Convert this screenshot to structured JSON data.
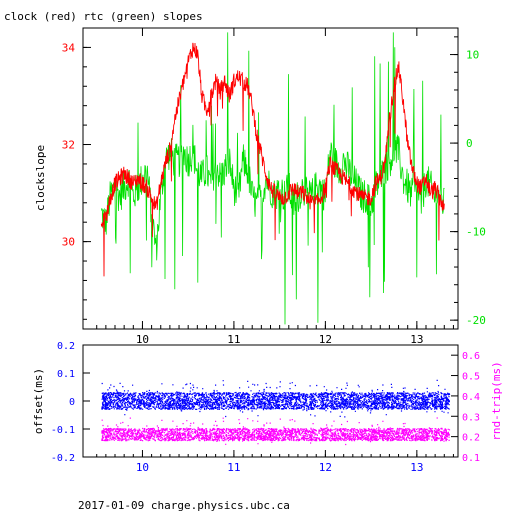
{
  "page": {
    "title": "clock (red) rtc (green) slopes",
    "footer": "2017-01-09 charge.physics.ubc.ca"
  },
  "colors": {
    "clock": "#ff0000",
    "rtc": "#00e000",
    "offset": "#0000ff",
    "rnd_trip": "#ff00ff",
    "axis": "#000000"
  },
  "chart_data": [
    {
      "type": "line",
      "title": "clock (red) rtc (green) slopes",
      "xlabel": "",
      "ylabel": "clockslope",
      "xlim": [
        9.35,
        13.45
      ],
      "ylim": [
        28.2,
        34.4
      ],
      "y2lim": [
        -21,
        13
      ],
      "x_ticks": [
        "10",
        "11",
        "12",
        "13"
      ],
      "y_ticks": [
        "30",
        "32",
        "34"
      ],
      "y2_ticks": [
        "10",
        "0",
        "-10",
        "-20"
      ],
      "grid": false,
      "legend": "none",
      "series": [
        {
          "name": "clock",
          "axis": "left",
          "x": [
            9.55,
            9.6,
            9.65,
            9.7,
            9.75,
            9.8,
            9.85,
            9.9,
            9.95,
            10.0,
            10.05,
            10.1,
            10.15,
            10.2,
            10.25,
            10.3,
            10.35,
            10.4,
            10.45,
            10.5,
            10.55,
            10.6,
            10.65,
            10.7,
            10.75,
            10.8,
            10.85,
            10.9,
            10.95,
            11.0,
            11.05,
            11.1,
            11.15,
            11.2,
            11.25,
            11.3,
            11.35,
            11.4,
            11.45,
            11.5,
            11.55,
            11.6,
            11.65,
            11.7,
            11.75,
            11.8,
            11.85,
            11.9,
            11.95,
            12.0,
            12.05,
            12.1,
            12.15,
            12.2,
            12.25,
            12.3,
            12.35,
            12.4,
            12.45,
            12.5,
            12.55,
            12.6,
            12.65,
            12.7,
            12.75,
            12.8,
            12.85,
            12.9,
            12.95,
            13.0,
            13.05,
            13.1,
            13.15,
            13.2,
            13.25,
            13.3
          ],
          "y": [
            30.4,
            30.5,
            30.9,
            31.2,
            31.3,
            31.4,
            31.3,
            31.2,
            31.3,
            31.2,
            31.1,
            30.9,
            30.7,
            31.2,
            31.6,
            31.9,
            32.5,
            32.9,
            33.3,
            33.7,
            34.0,
            33.9,
            33.0,
            32.7,
            33.0,
            33.3,
            33.1,
            33.3,
            33.0,
            33.3,
            33.4,
            33.3,
            33.2,
            32.8,
            32.2,
            31.8,
            31.4,
            31.1,
            31.0,
            30.9,
            30.9,
            31.0,
            31.1,
            31.0,
            31.0,
            30.9,
            30.8,
            30.8,
            30.9,
            31.1,
            31.6,
            31.5,
            31.4,
            31.3,
            31.2,
            31.1,
            31.0,
            30.9,
            30.9,
            30.9,
            31.2,
            31.3,
            31.6,
            32.5,
            33.2,
            33.6,
            32.9,
            32.0,
            31.5,
            31.2,
            31.1,
            31.3,
            31.0,
            31.1,
            30.9,
            30.7
          ]
        },
        {
          "name": "rtc",
          "axis": "right",
          "x": [
            9.55,
            9.6,
            9.65,
            9.7,
            9.75,
            9.8,
            9.85,
            9.9,
            9.95,
            10.0,
            10.05,
            10.1,
            10.15,
            10.2,
            10.25,
            10.3,
            10.35,
            10.4,
            10.45,
            10.5,
            10.55,
            10.6,
            10.65,
            10.7,
            10.75,
            10.8,
            10.85,
            10.9,
            10.95,
            11.0,
            11.05,
            11.1,
            11.15,
            11.2,
            11.25,
            11.3,
            11.35,
            11.4,
            11.45,
            11.5,
            11.55,
            11.6,
            11.65,
            11.7,
            11.75,
            11.8,
            11.85,
            11.9,
            11.95,
            12.0,
            12.05,
            12.1,
            12.15,
            12.2,
            12.25,
            12.3,
            12.35,
            12.4,
            12.45,
            12.5,
            12.55,
            12.6,
            12.65,
            12.7,
            12.75,
            12.8,
            12.85,
            12.9,
            12.95,
            13.0,
            13.05,
            13.1,
            13.15,
            13.2,
            13.25,
            13.3
          ],
          "y": [
            -8,
            -9,
            -6,
            -5,
            -6,
            -5,
            -4,
            -6,
            -5,
            -4,
            -3,
            -8,
            -12,
            -6,
            -2,
            -1,
            -2,
            -2,
            -1,
            -2,
            -1,
            -3,
            -4,
            -3,
            -5,
            -2,
            -4,
            -3,
            -2,
            -5,
            -6,
            -2,
            -3,
            -6,
            -7,
            -6,
            -4,
            -5,
            -6,
            -5,
            -6,
            -5,
            -7,
            -6,
            -5,
            -6,
            -6,
            -5,
            -5,
            -6,
            -1,
            -2,
            -3,
            -2,
            -3,
            -4,
            -5,
            -6,
            -6,
            -7,
            -5,
            -4,
            -3,
            -2,
            -1,
            -1,
            -4,
            -5,
            -6,
            -5,
            -7,
            -4,
            -5,
            -6,
            -6,
            -7
          ]
        }
      ]
    },
    {
      "type": "scatter",
      "xlabel": "",
      "ylabel": "offset(ms)",
      "y2label": "rnd-trip(ms)",
      "xlim": [
        9.35,
        13.45
      ],
      "ylim": [
        -0.2,
        0.2
      ],
      "y2lim": [
        0.1,
        0.65
      ],
      "x_ticks": [
        "10",
        "11",
        "12",
        "13"
      ],
      "y_ticks": [
        "0.2",
        "0.1",
        "0",
        "-0.1",
        "-0.2"
      ],
      "y2_ticks": [
        "0.6",
        "0.5",
        "0.4",
        "0.3",
        "0.2",
        "0.1"
      ],
      "grid": false,
      "legend": "none",
      "series": [
        {
          "name": "offset",
          "axis": "left",
          "band": [
            -0.03,
            0.03
          ],
          "x_range": [
            9.55,
            13.35
          ]
        },
        {
          "name": "rnd-trip",
          "axis": "right",
          "band": [
            0.18,
            0.24
          ],
          "x_range": [
            9.55,
            13.35
          ]
        }
      ]
    }
  ]
}
